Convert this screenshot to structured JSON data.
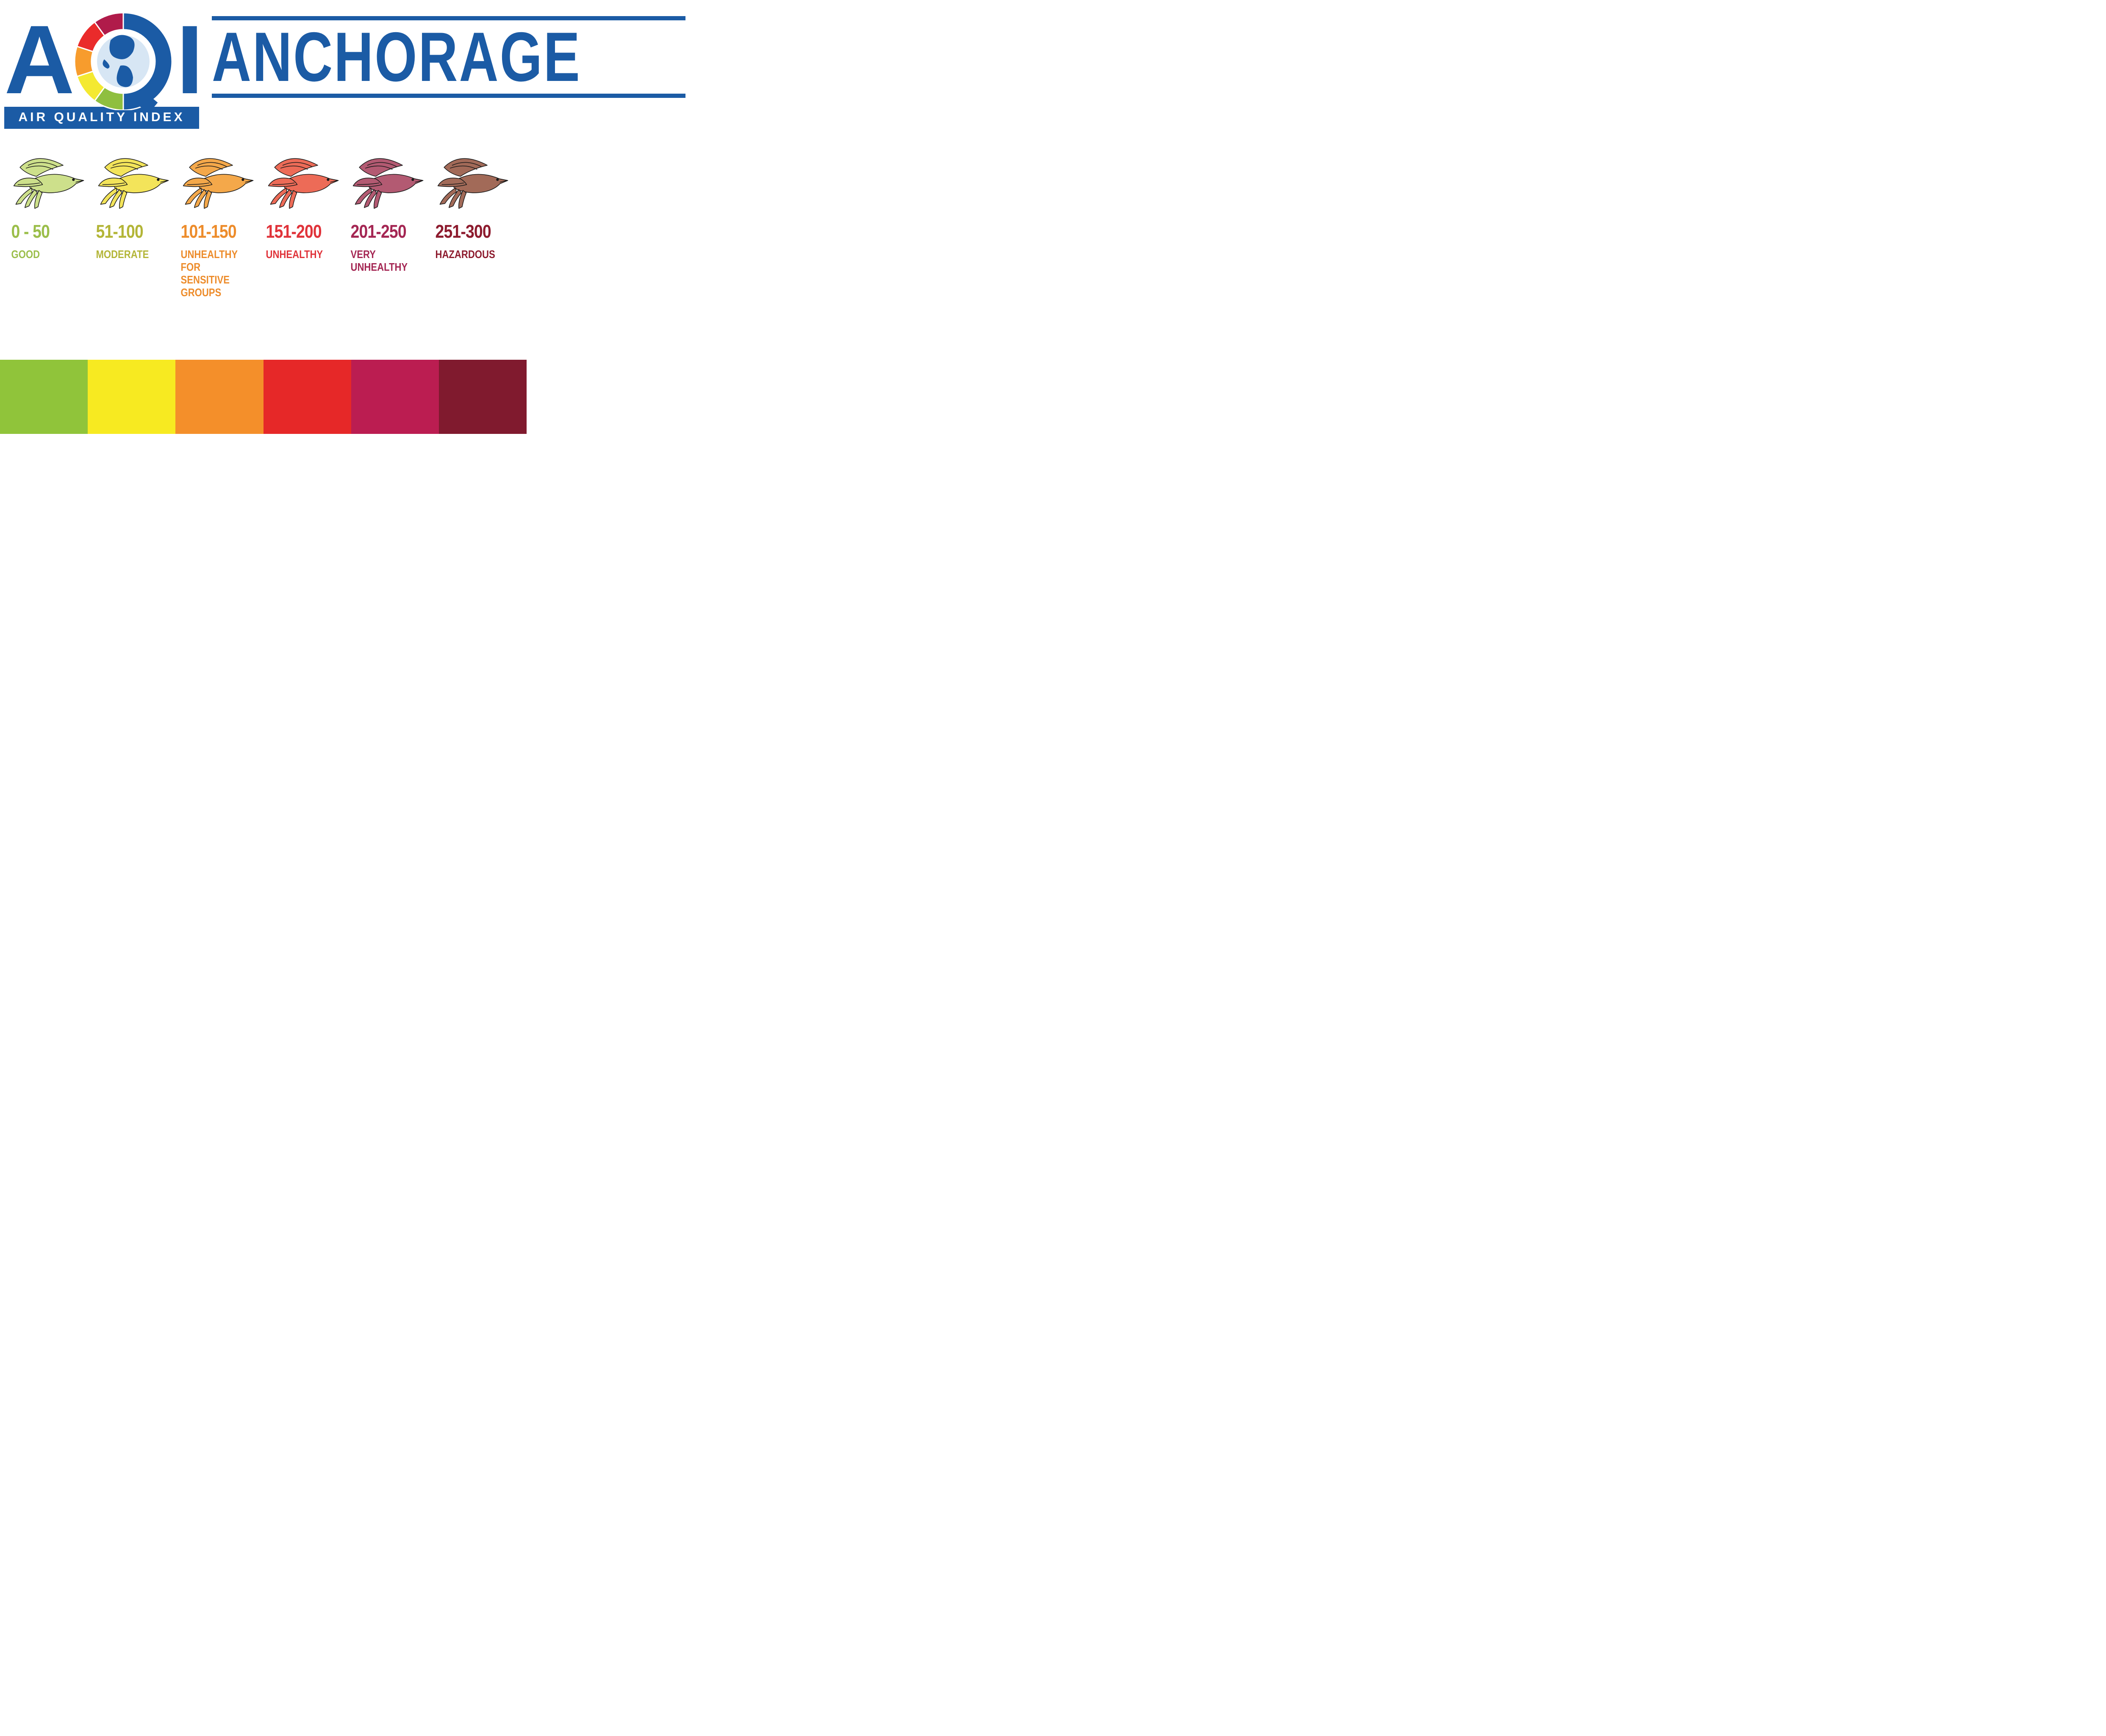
{
  "type": "infographic",
  "background_color": "#ffffff",
  "brand_color": "#1b5ba5",
  "logo": {
    "letters": {
      "a": "A",
      "i": "I"
    },
    "subtitle": "AIR  QUALITY  INDEX",
    "subtitle_bg": "#1b5ba5",
    "subtitle_color": "#ffffff",
    "subtitle_fontsize": 30,
    "letter_color": "#1b5ba5",
    "letter_fontsize": 230,
    "gauge_segments": [
      {
        "color": "#8fbf3f",
        "start_deg": 180,
        "end_deg": 216
      },
      {
        "color": "#f4e931",
        "start_deg": 216,
        "end_deg": 252
      },
      {
        "color": "#f79c2d",
        "start_deg": 252,
        "end_deg": 288
      },
      {
        "color": "#ea2b2b",
        "start_deg": 288,
        "end_deg": 324
      },
      {
        "color": "#b01b4a",
        "start_deg": 324,
        "end_deg": 360
      }
    ],
    "gauge_base_color": "#1b5ba5",
    "globe_water": "#d7e6f4",
    "globe_land": "#1b5ba5",
    "segment_gap_color": "#ffffff"
  },
  "city": {
    "name": "ANCHORAGE",
    "color": "#1b5ba5",
    "rule_color": "#1b5ba5",
    "rule_height": 10,
    "fontsize": 165
  },
  "categories": [
    {
      "range": "0 - 50",
      "label": "GOOD",
      "text_color": "#9bbe4a",
      "bird_fill": "#cde08b",
      "swatch": "#90c43a"
    },
    {
      "range": "51-100",
      "label": "MODERATE",
      "text_color": "#b3b537",
      "bird_fill": "#f3e45a",
      "swatch": "#f7ea21"
    },
    {
      "range": "101-150",
      "label": "UNHEALTHY FOR SENSITIVE GROUPS",
      "text_color": "#ed8c2b",
      "bird_fill": "#f4a84a",
      "swatch": "#f48f2a"
    },
    {
      "range": "151-200",
      "label": "UNHEALTHY",
      "text_color": "#e0333a",
      "bird_fill": "#ed6b57",
      "swatch": "#e62828"
    },
    {
      "range": "201-250",
      "label": "VERY UNHEALTHY",
      "text_color": "#a42653",
      "bird_fill": "#b35a72",
      "swatch": "#bb1d51"
    },
    {
      "range": "251-300",
      "label": "HAZARDOUS",
      "text_color": "#8d1b2e",
      "bird_fill": "#a26a58",
      "swatch": "#801a2e"
    }
  ],
  "category_typography": {
    "range_fontsize": 44,
    "label_fontsize": 26,
    "font_weight": 700
  },
  "colorbar_height": 175,
  "bird_outline": "#1a1a1a",
  "bird_outline_width": 1.6
}
